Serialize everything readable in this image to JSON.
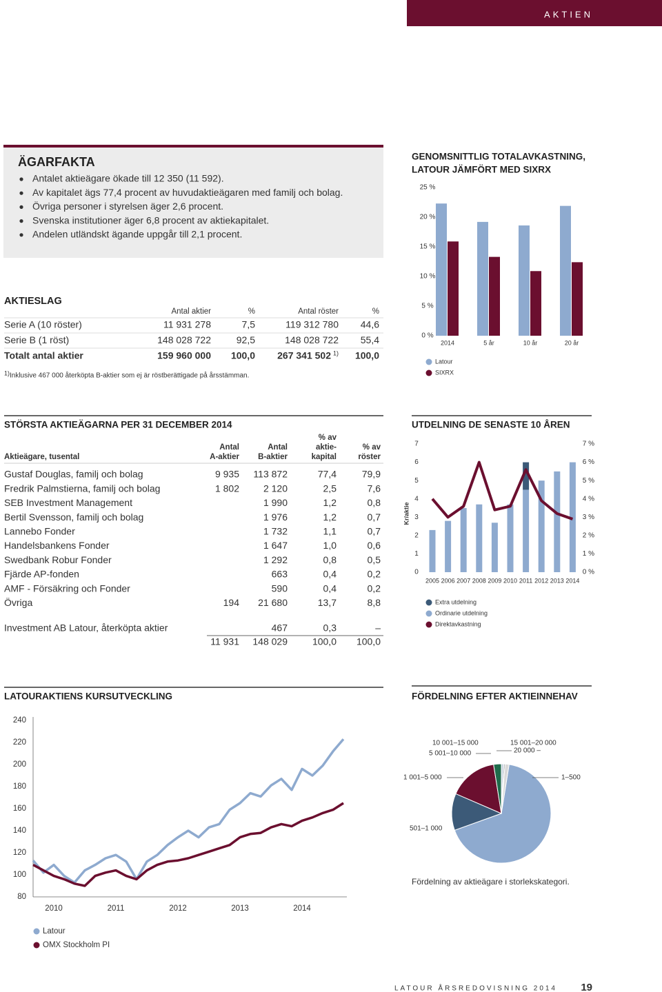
{
  "header": {
    "section": "AKTIEN"
  },
  "agarfakta": {
    "title": "ÄGARFAKTA",
    "items": [
      "Antalet aktieägare ökade till 12 350 (11 592).",
      "Av kapitalet ägs 77,4 procent av huvudaktieägaren med familj och bolag.",
      "Övriga personer i styrelsen äger 2,6 procent.",
      "Svenska institutioner äger 6,8 procent av aktiekapitalet.",
      "Andelen utländskt ägande uppgår till 2,1 procent."
    ]
  },
  "aktieslag": {
    "title": "AKTIESLAG",
    "columns": [
      "Antal aktier",
      "%",
      "Antal röster",
      "%"
    ],
    "rows": [
      [
        "Serie A (10 röster)",
        "11 931 278",
        "7,5",
        "119 312 780",
        "44,6"
      ],
      [
        "Serie B (1 röst)",
        "148 028 722",
        "92,5",
        "148 028 722",
        "55,4"
      ],
      [
        "Totalt antal aktier",
        "159 960 000",
        "100,0",
        "267 341 502",
        "100,0"
      ]
    ],
    "footnote": {
      "marker": "1)",
      "text": "Inklusive 467 000 återköpta B-aktier som ej är röstberättigade på årsstämman."
    }
  },
  "storsta": {
    "title": "STÖRSTA AKTIEÄGARNA PER 31 DECEMBER 2014",
    "columns": [
      [
        "Aktieägare, tusental"
      ],
      [
        "Antal",
        "A-aktier"
      ],
      [
        "Antal",
        "B-aktier"
      ],
      [
        "% av",
        "aktie-",
        "kapital"
      ],
      [
        "% av",
        "röster"
      ]
    ],
    "rows": [
      [
        "Gustaf Douglas, familj och bolag",
        "9 935",
        "113 872",
        "77,4",
        "79,9"
      ],
      [
        "Fredrik Palmstierna, familj och bolag",
        "1 802",
        "2 120",
        "2,5",
        "7,6"
      ],
      [
        "SEB Investment Management",
        null,
        "1 990",
        "1,2",
        "0,8"
      ],
      [
        "Bertil Svensson, familj och bolag",
        null,
        "1 976",
        "1,2",
        "0,7"
      ],
      [
        "Lannebo Fonder",
        null,
        "1 732",
        "1,1",
        "0,7"
      ],
      [
        "Handelsbankens Fonder",
        null,
        "1 647",
        "1,0",
        "0,6"
      ],
      [
        "Swedbank Robur Fonder",
        null,
        "1 292",
        "0,8",
        "0,5"
      ],
      [
        "Fjärde AP-fonden",
        null,
        "663",
        "0,4",
        "0,2"
      ],
      [
        "AMF - Försäkring och Fonder",
        null,
        "590",
        "0,4",
        "0,2"
      ],
      [
        "Övriga",
        "194",
        "21 680",
        "13,7",
        "8,8"
      ],
      [
        "Investment AB Latour, återköpta aktier",
        null,
        "467",
        "0,3",
        "–"
      ]
    ],
    "total": [
      null,
      "11 931",
      "148 029",
      "100,0",
      "100,0"
    ]
  },
  "chart_data": [
    {
      "type": "bar",
      "title": [
        "GENOMSNITTLIG TOTALAVKASTNING,",
        "LATOUR JÄMFÖRT MED SIXRX"
      ],
      "categories": [
        "2014",
        "5 år",
        "10 år",
        "20 år"
      ],
      "series": [
        {
          "name": "Latour",
          "color": "#8eaacf",
          "values": [
            22.3,
            19.2,
            18.6,
            21.9
          ]
        },
        {
          "name": "SIXRX",
          "color": "#6b0f2f",
          "values": [
            15.9,
            13.3,
            10.9,
            12.4
          ]
        }
      ],
      "ylim": [
        0,
        25
      ],
      "yticks": [
        {
          "value": 0,
          "label": "0 %"
        },
        {
          "value": 5,
          "label": "5 %"
        },
        {
          "value": 10,
          "label": "10 %"
        },
        {
          "value": 15,
          "label": "15 %"
        },
        {
          "value": 20,
          "label": "20 %"
        },
        {
          "value": 25,
          "label": "25 %"
        }
      ]
    },
    {
      "type": "bar",
      "stacked": true,
      "title": [
        "UTDELNING DE SENASTE 10 ÅREN"
      ],
      "y_label": "Kr/aktie",
      "categories": [
        "2005",
        "2006",
        "2007",
        "2008",
        "2009",
        "2010",
        "2011",
        "2012",
        "2013",
        "2014"
      ],
      "series": [
        {
          "name": "Extra utdelning",
          "color": "#3c5a78",
          "values": [
            null,
            null,
            null,
            null,
            null,
            null,
            1.5,
            null,
            null,
            null
          ]
        },
        {
          "name": "Ordinarie utdelning",
          "color": "#8eaacf",
          "values": [
            2.3,
            2.8,
            3.5,
            3.7,
            2.7,
            3.7,
            4.5,
            5.0,
            5.5,
            6.0
          ]
        },
        {
          "name": "Direktavkastning",
          "type": "line",
          "axis": "y2",
          "color": "#6b0f2f",
          "values": [
            4.0,
            3.0,
            3.6,
            6.0,
            3.4,
            3.6,
            5.6,
            3.9,
            3.2,
            2.9
          ]
        }
      ],
      "ylim": [
        0,
        7
      ],
      "yticks": [
        0,
        1,
        2,
        3,
        4,
        5,
        6,
        7
      ],
      "y2lim": [
        0,
        7
      ],
      "y2ticks": [
        {
          "value": 0,
          "label": "0 %"
        },
        {
          "value": 1,
          "label": "1 %"
        },
        {
          "value": 2,
          "label": "2 %"
        },
        {
          "value": 3,
          "label": "3 %"
        },
        {
          "value": 4,
          "label": "4 %"
        },
        {
          "value": 5,
          "label": "5 %"
        },
        {
          "value": 6,
          "label": "6 %"
        },
        {
          "value": 7,
          "label": "7 %"
        }
      ]
    },
    {
      "type": "line",
      "title": [
        "LATOURAKTIENS KURSUTVECKLING"
      ],
      "categories": [
        null,
        null,
        "2010",
        null,
        null,
        null,
        null,
        null,
        "2011",
        null,
        null,
        null,
        null,
        null,
        "2012",
        null,
        null,
        null,
        null,
        null,
        "2013",
        null,
        null,
        null,
        null,
        null,
        "2014",
        null,
        null,
        null,
        null
      ],
      "series": [
        {
          "name": "Latour",
          "color": "#8eaacf",
          "values": [
            113,
            102,
            109,
            99,
            93,
            104,
            109,
            115,
            118,
            112,
            96,
            112,
            118,
            127,
            134,
            140,
            134,
            143,
            146,
            159,
            165,
            174,
            171,
            181,
            187,
            177,
            196,
            190,
            199,
            212,
            223
          ]
        },
        {
          "name": "OMX Stockholm PI",
          "color": "#6b0f2f",
          "values": [
            109,
            104,
            99,
            96,
            92,
            90,
            99,
            102,
            104,
            99,
            96,
            104,
            109,
            112,
            113,
            115,
            118,
            121,
            124,
            127,
            134,
            137,
            138,
            143,
            146,
            144,
            149,
            152,
            156,
            159,
            165
          ]
        }
      ],
      "ylim": [
        80,
        240
      ],
      "yticks": [
        80,
        100,
        120,
        140,
        160,
        180,
        200,
        220,
        240
      ]
    },
    {
      "type": "pie",
      "title": [
        "FÖRDELNING EFTER AKTIEINNEHAV"
      ],
      "caption": "Fördelning av aktieägare i storlekskategori.",
      "categories": [
        "1–500",
        "501–1 000",
        "1 001–5 000",
        "5 001–10 000",
        "10 001–15 000",
        "15 001–20 000",
        "20 000 –"
      ],
      "values": [
        67,
        12,
        16,
        2.5,
        0.8,
        0.4,
        1.3
      ],
      "colors": [
        "#8eaacf",
        "#3c5a78",
        "#6b0f2f",
        "#1f6b4b",
        "#c8d3df",
        "#8a8f96",
        "#d9d9d9"
      ]
    }
  ],
  "footer": {
    "publication": "LATOUR ÅRSREDOVISNING 2014",
    "page": "19"
  }
}
